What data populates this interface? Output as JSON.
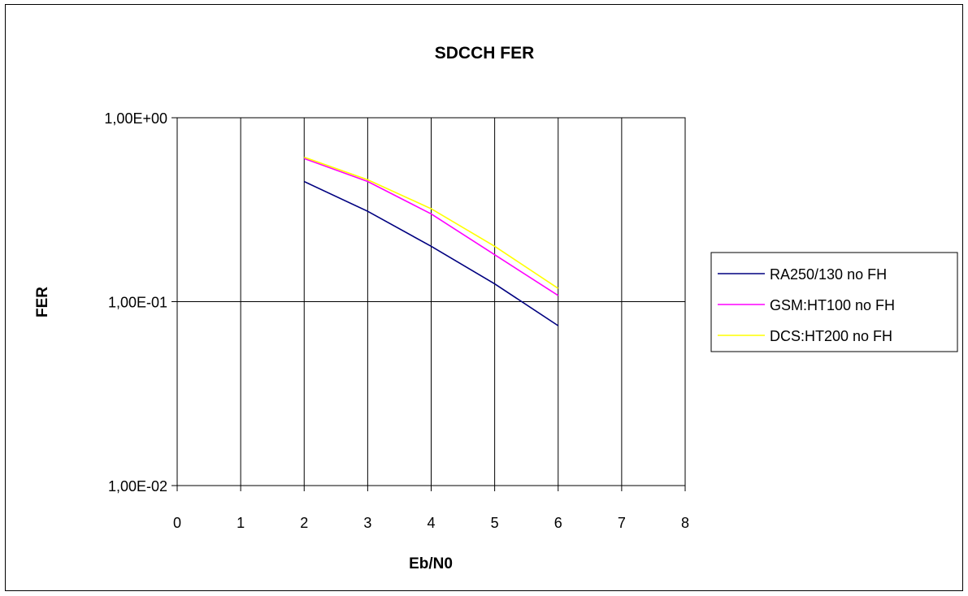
{
  "chart_data": {
    "type": "line",
    "title": "SDCCH  FER",
    "xlabel": "Eb/N0",
    "ylabel": "FER",
    "xlim": [
      0,
      8
    ],
    "ylim": [
      0.01,
      1
    ],
    "y_scale": "log",
    "x_ticks": [
      "0",
      "1",
      "2",
      "3",
      "4",
      "5",
      "6",
      "7",
      "8"
    ],
    "y_ticks": [
      "1,00E+00",
      "1,00E-01",
      "1,00E-02"
    ],
    "y_tick_values": [
      1,
      0.1,
      0.01
    ],
    "grid": "vertical and horizontal major lines",
    "legend_position": "right",
    "x": [
      2,
      3,
      4,
      5,
      6
    ],
    "series": [
      {
        "name": "RA250/130 no FH",
        "color": "#000080",
        "values": [
          0.45,
          0.31,
          0.2,
          0.125,
          0.074
        ]
      },
      {
        "name": "GSM:HT100 no FH",
        "color": "#ff00ff",
        "values": [
          0.6,
          0.45,
          0.3,
          0.18,
          0.108
        ]
      },
      {
        "name": "DCS:HT200 no FH",
        "color": "#ffff00",
        "values": [
          0.61,
          0.46,
          0.32,
          0.2,
          0.118
        ]
      }
    ]
  }
}
